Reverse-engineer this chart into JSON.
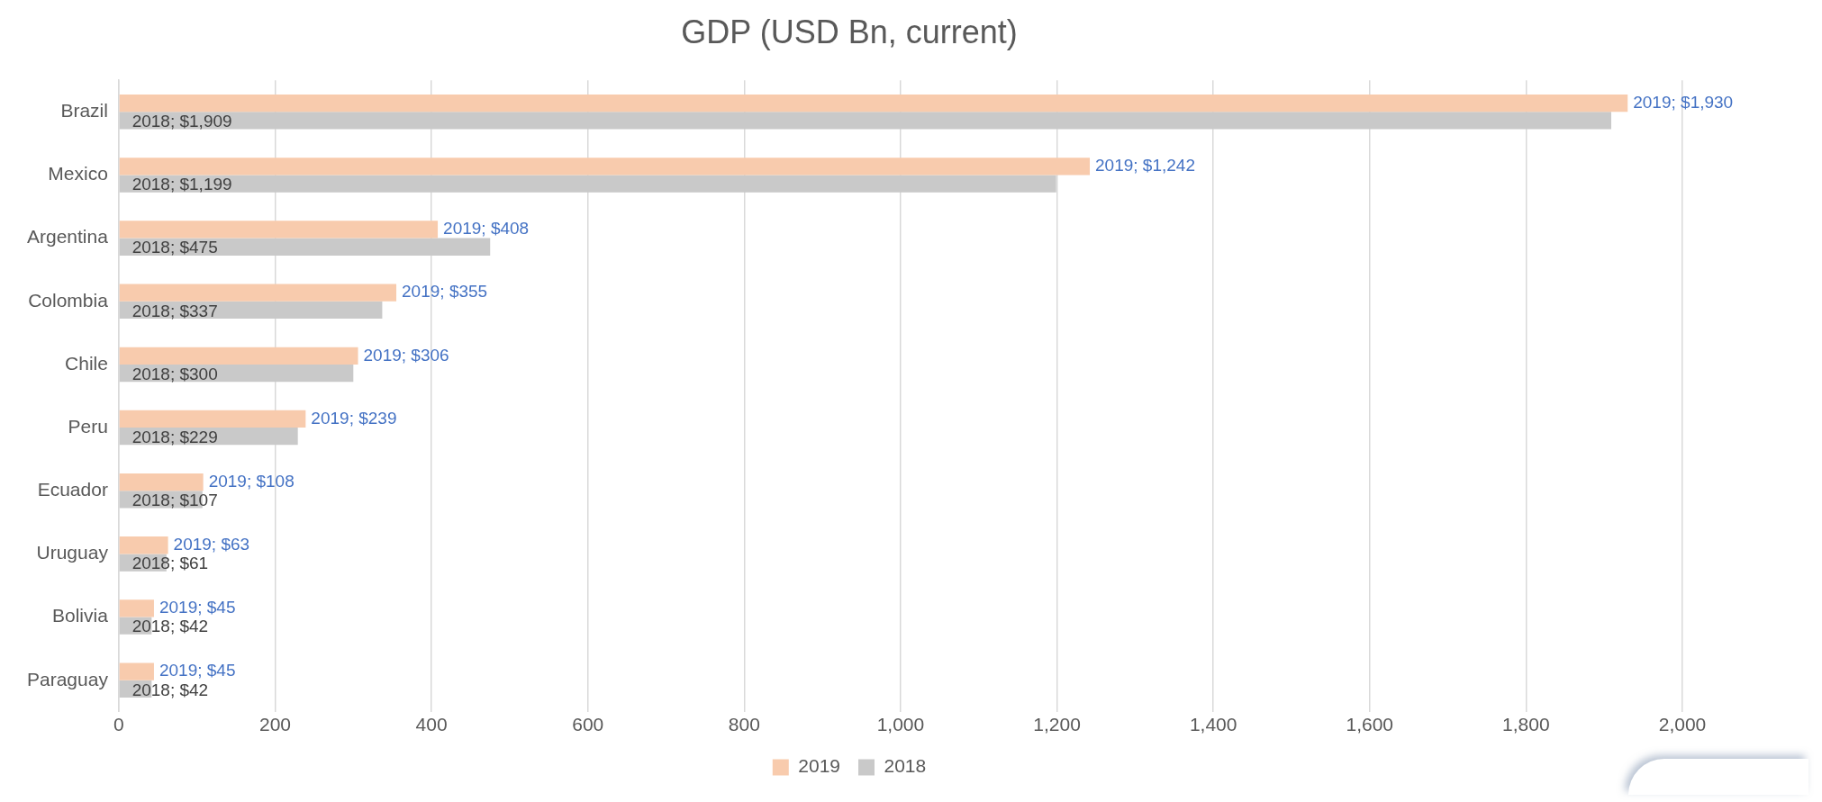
{
  "chart_data": {
    "type": "bar",
    "orientation": "horizontal",
    "title": "GDP (USD Bn, current)",
    "categories": [
      "Brazil",
      "Mexico",
      "Argentina",
      "Colombia",
      "Chile",
      "Peru",
      "Ecuador",
      "Uruguay",
      "Bolivia",
      "Paraguay"
    ],
    "series": [
      {
        "name": "2019",
        "color": "#f8cbad",
        "values": [
          1930,
          1242,
          408,
          355,
          306,
          239,
          108,
          63,
          45,
          45
        ],
        "value_labels": [
          "2019; $1,930",
          "2019; $1,242",
          "2019; $408",
          "2019; $355",
          "2019; $306",
          "2019; $239",
          "2019; $108",
          "2019; $63",
          "2019; $45",
          "2019; $45"
        ]
      },
      {
        "name": "2018",
        "color": "#c9c9c9",
        "values": [
          1909,
          1199,
          475,
          337,
          300,
          229,
          107,
          61,
          42,
          42
        ],
        "value_labels": [
          "2018; $1,909",
          "2018; $1,199",
          "2018; $475",
          "2018; $337",
          "2018; $300",
          "2018; $229",
          "2018; $107",
          "2018; $61",
          "2018; $42",
          "2018; $42"
        ]
      }
    ],
    "xlim": [
      0,
      2000
    ],
    "xticks": [
      0,
      200,
      400,
      600,
      800,
      {
        "value": 1000,
        "label": "1,000"
      },
      {
        "value": 1200,
        "label": "1,200"
      },
      {
        "value": 1400,
        "label": "1,400"
      },
      {
        "value": 1600,
        "label": "1,600"
      },
      {
        "value": 1800,
        "label": "1,800"
      },
      {
        "value": 2000,
        "label": "2,000"
      }
    ],
    "grid": "x",
    "legend": "bottom"
  }
}
